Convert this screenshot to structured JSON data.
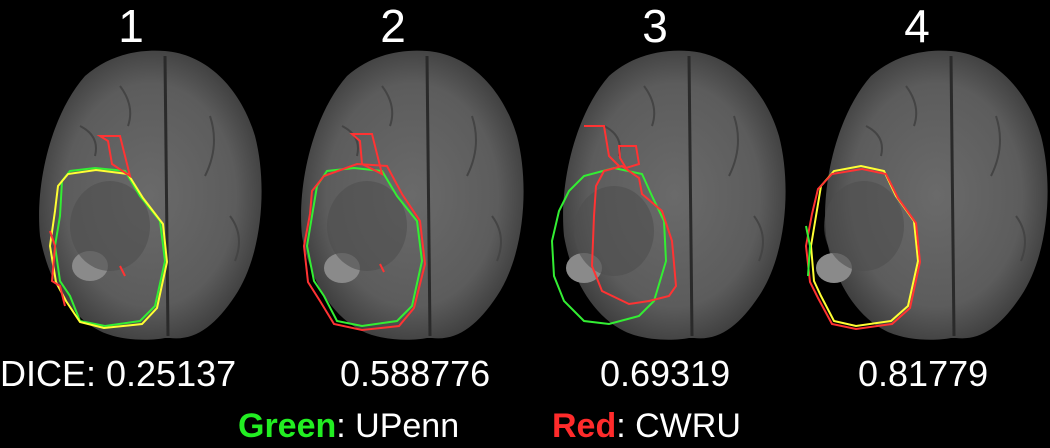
{
  "panels": [
    {
      "number": "1",
      "dice": "DICE: 0.25137"
    },
    {
      "number": "2",
      "dice": "0.588776"
    },
    {
      "number": "3",
      "dice": "0.69319"
    },
    {
      "number": "4",
      "dice": "0.81779"
    }
  ],
  "legend": {
    "green_word": "Green",
    "green_rest": ": UPenn",
    "red_word": "Red",
    "red_rest": ": CWRU"
  },
  "colors": {
    "green_contour": "#33ee33",
    "red_contour": "#ff3333",
    "overlap_contour": "#ffff33",
    "background": "#000000"
  }
}
